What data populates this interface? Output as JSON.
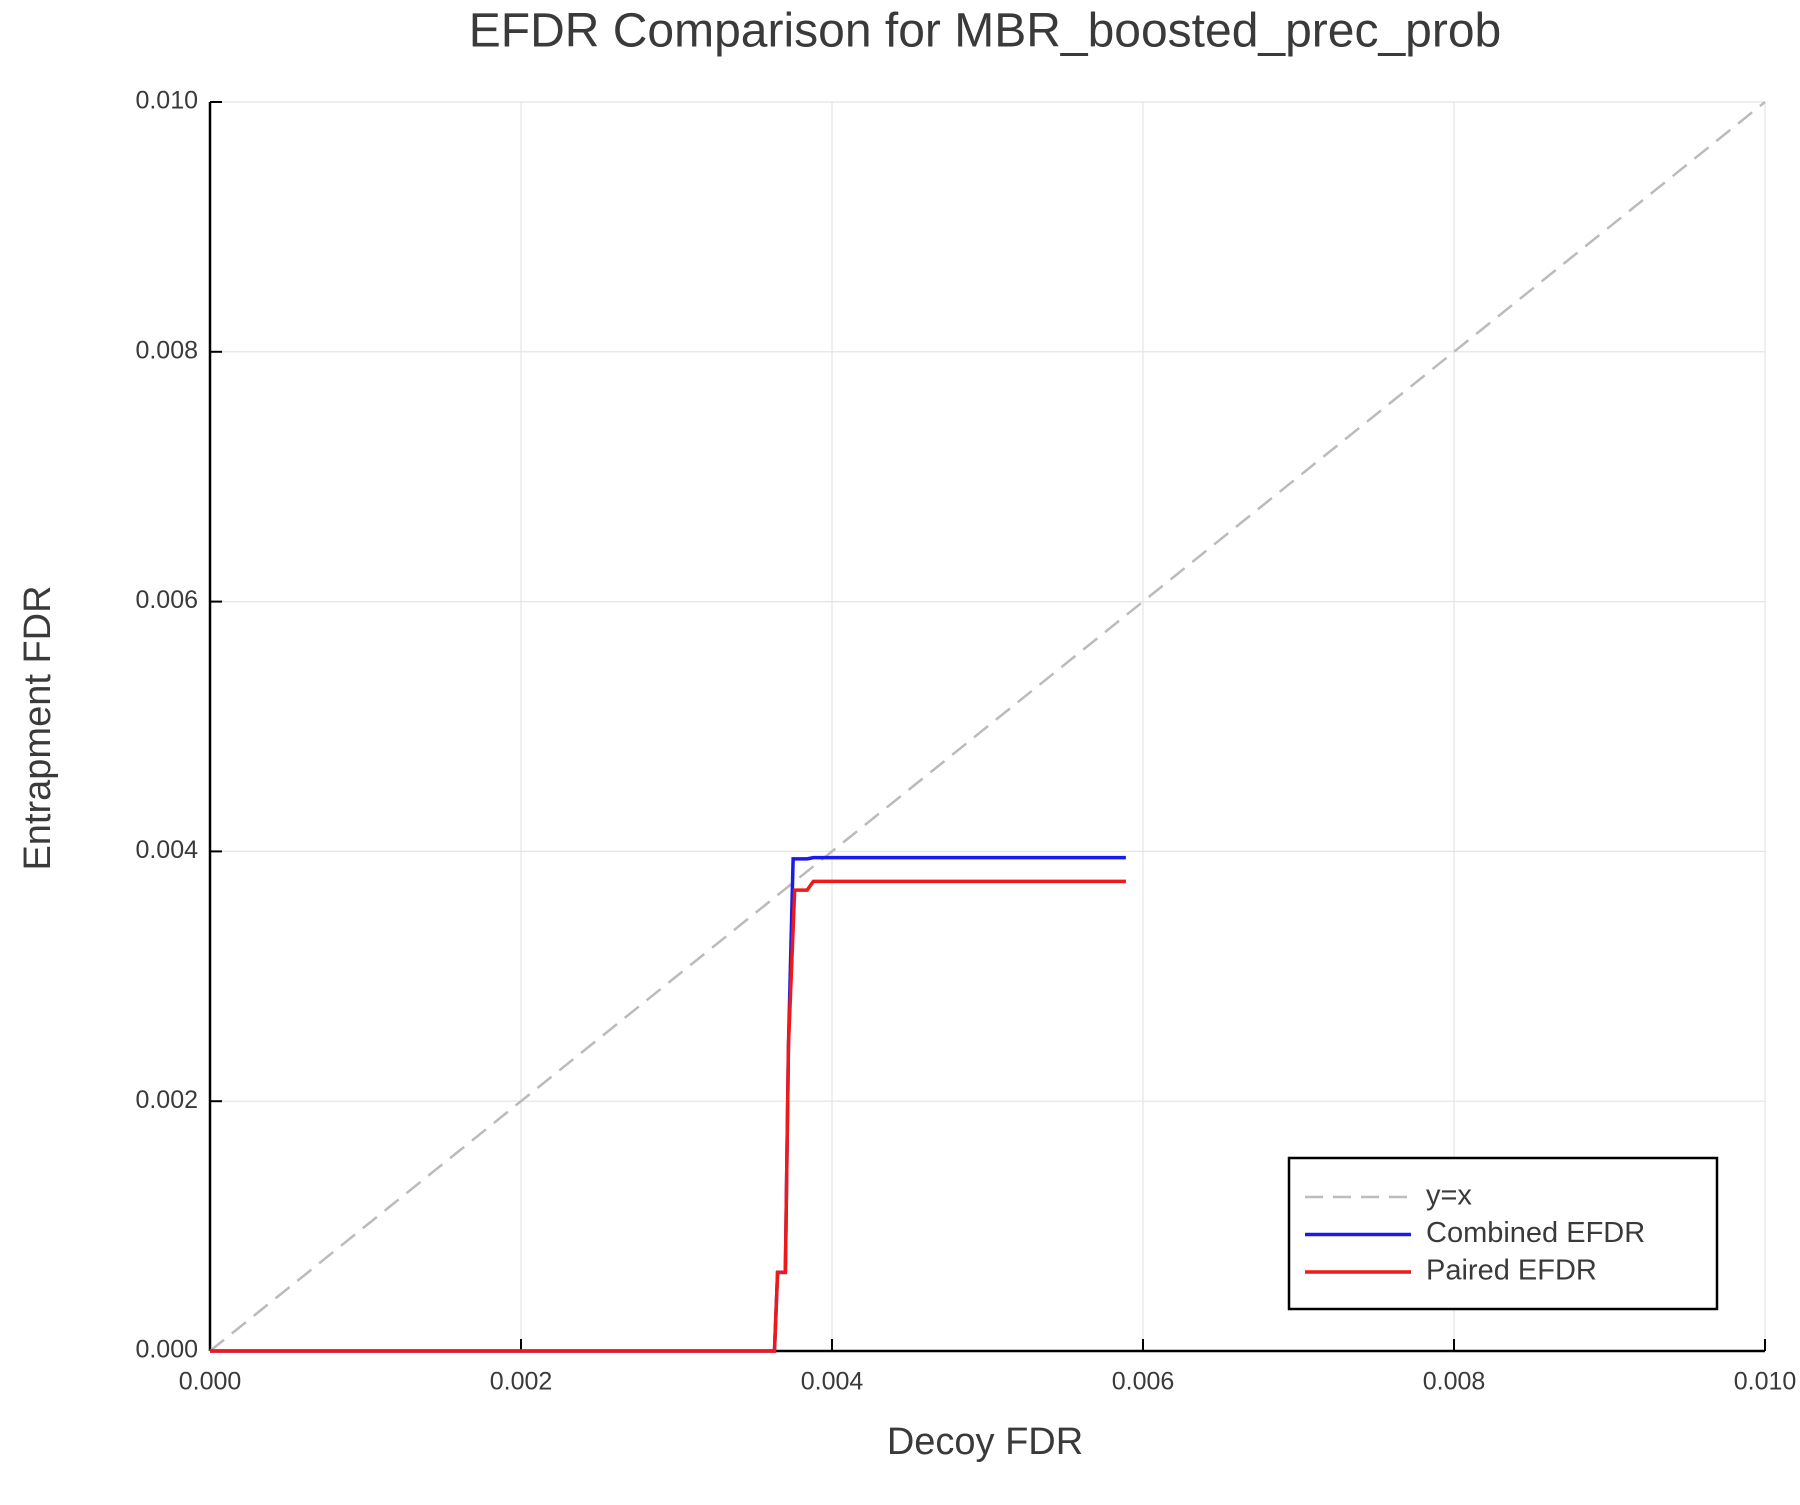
{
  "chart_data": {
    "type": "line",
    "title": "EFDR Comparison for MBR_boosted_prec_prob",
    "x_label": "Decoy FDR",
    "y_label": "Entrapment FDR",
    "xlim": [
      0,
      0.01
    ],
    "ylim": [
      0,
      0.01
    ],
    "xticks": [
      {
        "value": 0,
        "label": "0.000"
      },
      0.002,
      0.004,
      0.006,
      0.008,
      {
        "value": 0.01,
        "label": "0.010"
      }
    ],
    "yticks": [
      {
        "value": 0,
        "label": "0.000"
      },
      0.002,
      0.004,
      0.006,
      0.008,
      {
        "value": 0.01,
        "label": "0.010"
      }
    ],
    "grid": true,
    "legend": "bottom-right",
    "series": [
      {
        "name": "y=x",
        "color": "#bbbbbb",
        "dash": true,
        "x": [
          0,
          0.01
        ],
        "values": [
          0,
          0.01
        ]
      },
      {
        "name": "Combined EFDR",
        "color": "#1a1aee",
        "dash": false,
        "x": [
          0,
          0.00363,
          0.00365,
          0.0037,
          0.00372,
          0.00375,
          0.00384,
          0.00388,
          0.00589
        ],
        "values": [
          0,
          0,
          0.00063,
          0.00063,
          0.00245,
          0.00394,
          0.00394,
          0.00395,
          0.00395
        ]
      },
      {
        "name": "Paired EFDR",
        "color": "#ee1a1a",
        "dash": false,
        "x": [
          0,
          0.00363,
          0.00365,
          0.0037,
          0.00372,
          0.00376,
          0.00384,
          0.00388,
          0.00589
        ],
        "values": [
          0,
          0,
          0.00063,
          0.00063,
          0.00245,
          0.00369,
          0.00369,
          0.00376,
          0.00376
        ]
      }
    ]
  }
}
